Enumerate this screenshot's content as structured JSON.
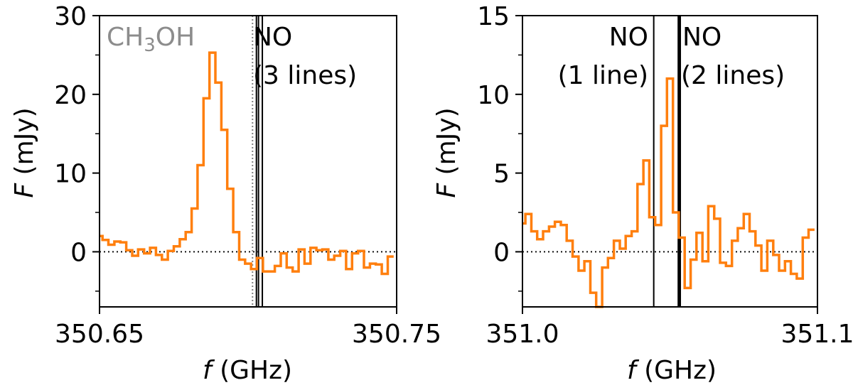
{
  "colors": {
    "spectrum": "#ff7f0e",
    "line_marker": "#000000",
    "ch3oh_marker": "#808080",
    "zero_line": "#000000"
  },
  "chart_data": [
    {
      "type": "line",
      "step": true,
      "xlabel": "f (GHz)",
      "ylabel": "F (mJy)",
      "xlim": [
        350.65,
        350.75
      ],
      "ylim": [
        -7,
        30
      ],
      "xticks": [
        350.65,
        350.75
      ],
      "xtick_labels": [
        "350.65",
        "350.75"
      ],
      "yticks": [
        0,
        10,
        20,
        30
      ],
      "ytick_labels": [
        "0",
        "10",
        "20",
        "30"
      ],
      "y_minor_ticks": [
        -5,
        5,
        15,
        25
      ],
      "zero_line": 0,
      "series": [
        {
          "x": [
            350.65,
            350.652,
            350.654,
            350.656,
            350.658,
            350.66,
            350.662,
            350.664,
            350.666,
            350.668,
            350.67,
            350.672,
            350.674,
            350.676,
            350.678,
            350.68,
            350.682,
            350.684,
            350.686,
            350.688,
            350.69,
            350.692,
            350.694,
            350.696,
            350.698,
            350.7,
            350.702,
            350.704,
            350.706,
            350.708,
            350.71,
            350.712,
            350.714,
            350.716,
            350.718,
            350.72,
            350.722,
            350.724,
            350.726,
            350.728,
            350.73,
            350.732,
            350.734,
            350.736,
            350.738,
            350.74,
            350.742,
            350.744,
            350.746,
            350.748
          ],
          "y": [
            2.0,
            1.5,
            0.9,
            1.3,
            1.2,
            0.2,
            -0.5,
            0.3,
            -0.2,
            0.5,
            -0.4,
            -1.0,
            0.1,
            0.7,
            1.6,
            2.5,
            5.5,
            11.0,
            19.5,
            25.3,
            21.5,
            15.5,
            8.0,
            2.5,
            -1.0,
            -1.5,
            -2.2,
            -0.8,
            -2.5,
            -2.5,
            -1.8,
            -0.2,
            -2.0,
            -2.5,
            0.3,
            -1.5,
            0.5,
            0.2,
            0.3,
            -1.0,
            -0.5,
            0.1,
            -2.2,
            -0.2,
            0.1,
            -2.0,
            -1.5,
            -1.6,
            -2.8,
            -0.6
          ]
        }
      ],
      "markers": [
        {
          "x": 350.7015,
          "style": "dotted",
          "color": "#808080"
        },
        {
          "x": 350.7028,
          "style": "solid"
        },
        {
          "x": 350.7035,
          "style": "solid"
        },
        {
          "x": 350.7048,
          "style": "solid"
        }
      ],
      "annotations": {
        "ch3oh": {
          "prefix": "CH",
          "sub": "3",
          "suffix": "OH"
        },
        "no": {
          "line1": "NO",
          "line2": "(3 lines)"
        }
      }
    },
    {
      "type": "line",
      "step": true,
      "xlabel": "f (GHz)",
      "ylabel": "F (mJy)",
      "xlim": [
        351.0,
        351.1
      ],
      "ylim": [
        -3.5,
        15
      ],
      "xticks": [
        351.0,
        351.1
      ],
      "xtick_labels": [
        "351.0",
        "351.1"
      ],
      "yticks": [
        0,
        5,
        10,
        15
      ],
      "ytick_labels": [
        "0",
        "5",
        "10",
        "15"
      ],
      "y_minor_ticks": [
        -2.5,
        2.5,
        7.5,
        12.5
      ],
      "zero_line": 0,
      "series": [
        {
          "x": [
            351.0,
            351.002,
            351.004,
            351.006,
            351.008,
            351.01,
            351.012,
            351.014,
            351.016,
            351.018,
            351.02,
            351.022,
            351.024,
            351.026,
            351.028,
            351.03,
            351.032,
            351.034,
            351.036,
            351.038,
            351.04,
            351.042,
            351.044,
            351.046,
            351.048,
            351.05,
            351.052,
            351.054,
            351.056,
            351.058,
            351.06,
            351.062,
            351.064,
            351.066,
            351.068,
            351.07,
            351.072,
            351.074,
            351.076,
            351.078,
            351.08,
            351.082,
            351.084,
            351.086,
            351.088,
            351.09,
            351.092,
            351.094,
            351.096,
            351.098
          ],
          "y": [
            1.8,
            2.4,
            1.3,
            0.8,
            1.3,
            1.6,
            1.9,
            1.7,
            0.7,
            -0.3,
            -1.2,
            -0.6,
            -2.6,
            -3.6,
            -1.0,
            -0.4,
            0.7,
            0.2,
            1.0,
            1.3,
            4.3,
            5.8,
            2.2,
            1.7,
            8.0,
            11.0,
            2.5,
            0.9,
            -2.3,
            -0.5,
            1.2,
            -0.6,
            2.9,
            2.1,
            -0.7,
            -0.9,
            0.7,
            1.5,
            2.4,
            1.3,
            0.4,
            -1.2,
            0.7,
            -0.2,
            -1.2,
            -0.6,
            -1.4,
            -1.7,
            0.9,
            1.4
          ]
        }
      ],
      "markers": [
        {
          "x": 351.0445,
          "style": "solid",
          "weight": "thin"
        },
        {
          "x": 351.053,
          "style": "solid",
          "weight": "thick"
        },
        {
          "x": 351.0535,
          "style": "solid",
          "weight": "thin"
        }
      ],
      "annotations": {
        "no_left": {
          "line1": "NO",
          "line2": "(1 line)"
        },
        "no_right": {
          "line1": "NO",
          "line2": "(2 lines)"
        }
      }
    }
  ]
}
